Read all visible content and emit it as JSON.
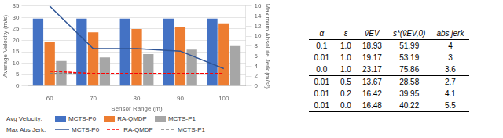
{
  "chart_data": [
    {
      "type": "bar",
      "xlabel": "Sensor Range (m)",
      "ylabel": "Average Velocity (m/s)",
      "y2label": "Maximum Absolute Jerk (m/s³)",
      "x": [
        60,
        70,
        80,
        90,
        100
      ],
      "xlim": [
        55,
        105
      ],
      "xticks": [
        60,
        70,
        80,
        90,
        100
      ],
      "ylim": [
        0,
        35
      ],
      "yticks": [
        0,
        5,
        10,
        15,
        20,
        25,
        30,
        35
      ],
      "y2lim": [
        0,
        16
      ],
      "y2ticks": [
        0,
        2,
        4,
        6,
        8,
        10,
        12,
        14,
        16
      ],
      "grid": true,
      "legend": "bottom",
      "legend_titles": {
        "bar": "Avg Velocity:",
        "line": "Max Abs Jerk:"
      },
      "series": [
        {
          "name": "MCTS-P0",
          "type": "bar",
          "color": "#4472C4",
          "values": [
            29.5,
            29.5,
            29.5,
            29.5,
            29.5
          ]
        },
        {
          "name": "RA-QMDP",
          "type": "bar",
          "color": "#ED7D31",
          "values": [
            19.5,
            23.5,
            25.0,
            26.0,
            27.5
          ]
        },
        {
          "name": "MCTS-P1",
          "type": "bar",
          "color": "#A6A6A6",
          "values": [
            11.0,
            12.5,
            14.0,
            16.0,
            17.5
          ]
        },
        {
          "name": "MCTS-P0",
          "type": "line",
          "axis": "y2",
          "line_style": "solid",
          "color": "#2F5597",
          "values": [
            16.0,
            7.5,
            7.5,
            7.0,
            3.5
          ]
        },
        {
          "name": "RA-QMDP",
          "type": "line",
          "axis": "y2",
          "line_style": "dashed",
          "color": "#FF0000",
          "values": [
            3.0,
            2.5,
            2.5,
            2.5,
            2.5
          ]
        },
        {
          "name": "MCTS-P1",
          "type": "line",
          "axis": "y2",
          "line_style": "dashed",
          "color": "#808080",
          "values": [
            2.5,
            2.5,
            2.5,
            2.5,
            2.5
          ]
        }
      ]
    },
    {
      "type": "table",
      "columns": [
        "α",
        "ε",
        "v̄EV",
        "s*(v̄EV,0)",
        "abs jerk"
      ],
      "rows": [
        [
          "0.1",
          "1.0",
          "18.93",
          "51.99",
          "4"
        ],
        [
          "0.01",
          "1.0",
          "19.17",
          "53.19",
          "3"
        ],
        [
          "0.0",
          "1.0",
          "23.17",
          "75.86",
          "3.6"
        ],
        [
          "0.01",
          "0.5",
          "13.67",
          "28.58",
          "2.7"
        ],
        [
          "0.01",
          "0.2",
          "16.42",
          "39.95",
          "4.1"
        ],
        [
          "0.01",
          "0.0",
          "16.48",
          "40.22",
          "5.5"
        ]
      ]
    }
  ]
}
